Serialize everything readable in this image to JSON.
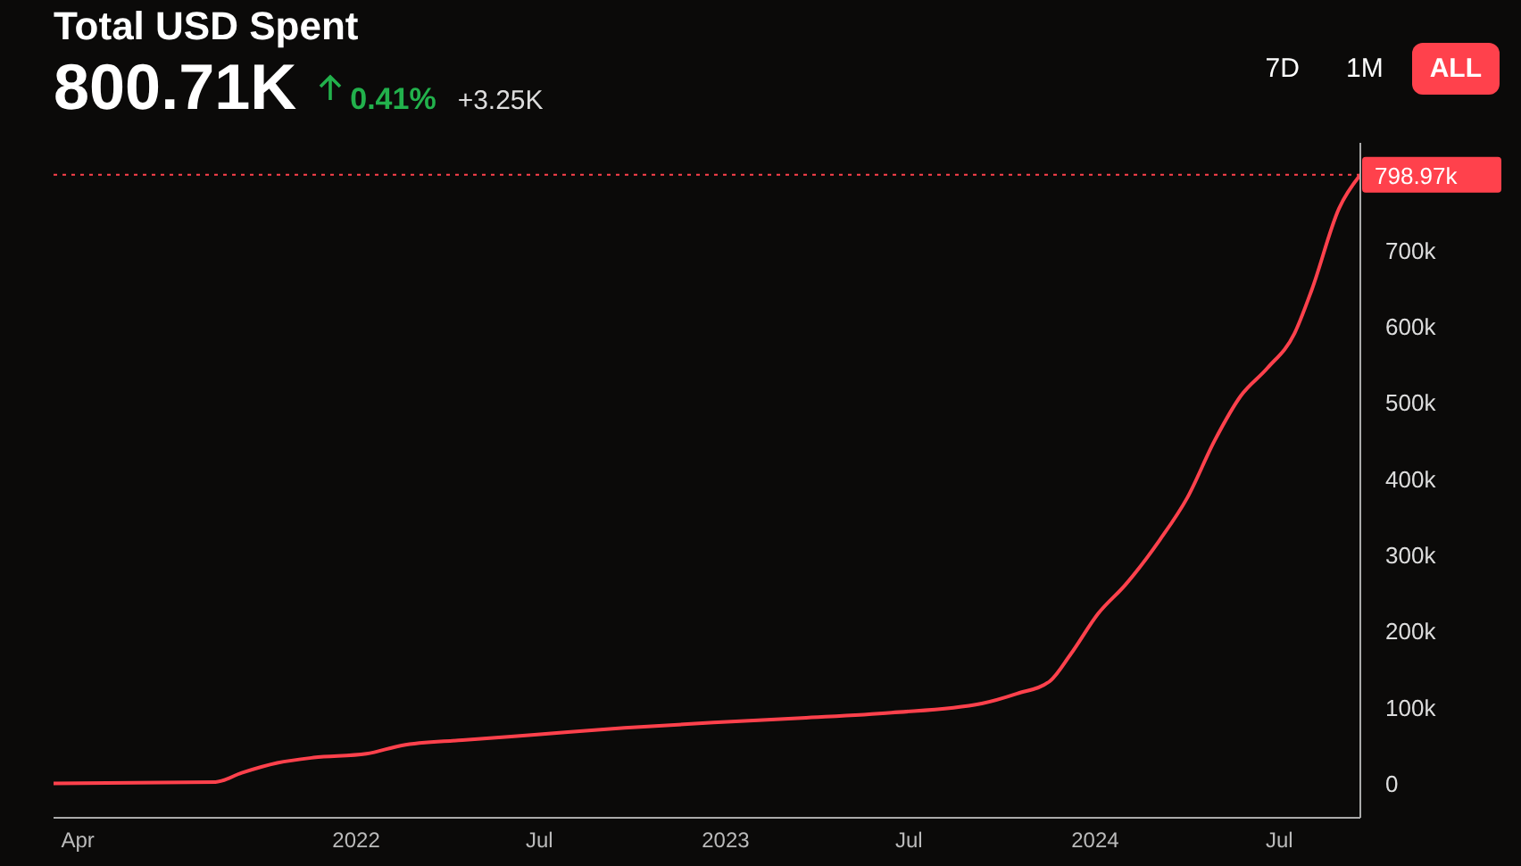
{
  "chart_data": {
    "type": "line",
    "title": "Total USD Spent",
    "annotations": [
      "800.71K",
      "0.41%",
      "+3.25K",
      "7D",
      "1M",
      "ALL"
    ],
    "x": [
      "2021-03-08",
      "2021-08-15",
      "2021-09-10",
      "2021-10-15",
      "2021-11-20",
      "2022-01-11",
      "2022-02-15",
      "2022-04-16",
      "2022-06-26",
      "2022-09-23",
      "2022-12-20",
      "2023-03-17",
      "2023-06-14",
      "2023-09-11",
      "2023-10-16",
      "2023-11-17",
      "2023-12-08",
      "2024-01-04",
      "2024-01-31",
      "2024-03-05",
      "2024-04-01",
      "2024-04-28",
      "2024-05-24",
      "2024-06-19",
      "2024-07-16",
      "2024-08-02",
      "2024-08-29",
      "2024-09-19"
    ],
    "series": [
      {
        "color": "#ff414c",
        "values": [
          0,
          2000,
          14000,
          27000,
          34000,
          39000,
          50000,
          57000,
          64000,
          73000,
          80000,
          86000,
          93000,
          105000,
          118000,
          134000,
          170000,
          223000,
          261000,
          320000,
          375000,
          450000,
          509000,
          545000,
          591000,
          648000,
          755000,
          799000
        ]
      }
    ],
    "xlim": [
      "2021-03-08",
      "2024-09-19"
    ],
    "xticks": [
      {
        "value": "2021-04-01",
        "label": "Apr"
      },
      {
        "value": "2022-01-01",
        "label": "2022"
      },
      {
        "value": "2022-07-01",
        "label": "Jul"
      },
      {
        "value": "2023-01-01",
        "label": "2023"
      },
      {
        "value": "2023-07-01",
        "label": "Jul"
      },
      {
        "value": "2024-01-01",
        "label": "2024"
      },
      {
        "value": "2024-07-01",
        "label": "Jul"
      }
    ],
    "ylim": [
      -45000,
      841000
    ],
    "yticks": [
      {
        "value": 0,
        "label": "0"
      },
      {
        "value": 100000,
        "label": "100k"
      },
      {
        "value": 200000,
        "label": "200k"
      },
      {
        "value": 300000,
        "label": "300k"
      },
      {
        "value": 400000,
        "label": "400k"
      },
      {
        "value": 500000,
        "label": "500k"
      },
      {
        "value": 600000,
        "label": "600k"
      },
      {
        "value": 700000,
        "label": "700k"
      }
    ],
    "ref_lines": [
      {
        "axis": "y",
        "value": 798970,
        "label": "798.97k",
        "color": "#ff414c",
        "line_style": "dotted"
      }
    ],
    "marker": "none",
    "line_style": "solid",
    "grid": false,
    "legend": false
  }
}
